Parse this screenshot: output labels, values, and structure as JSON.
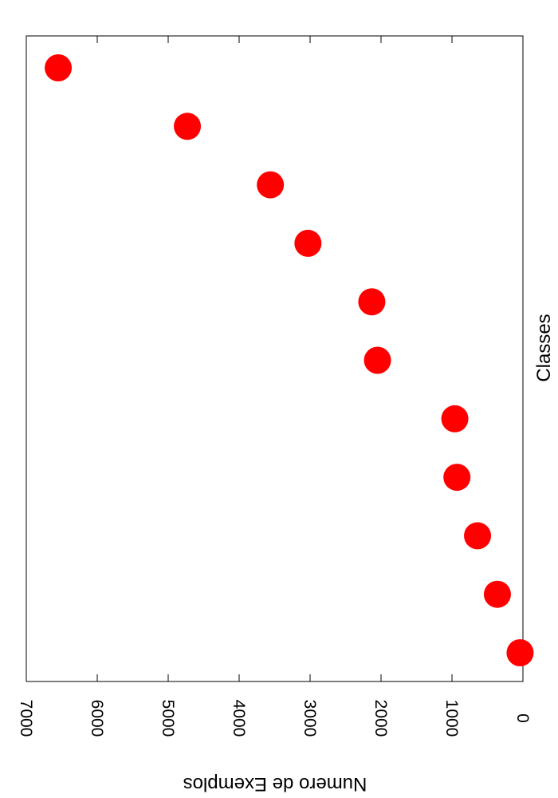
{
  "chart_data": {
    "type": "scatter",
    "orientation": "rotated-90-clockwise",
    "xlabel": "Classes",
    "ylabel": "Numero de Exemplos",
    "ylim": [
      0,
      7000
    ],
    "yticks": [
      "0",
      "1000",
      "2000",
      "3000",
      "4000",
      "5000",
      "6000",
      "7000"
    ],
    "x": [
      1,
      2,
      3,
      4,
      5,
      6,
      7,
      8,
      9,
      10,
      11
    ],
    "values": [
      40,
      360,
      640,
      930,
      960,
      2050,
      2130,
      3030,
      3560,
      4730,
      6550
    ],
    "marker_color": "#ff0000",
    "grid": false
  }
}
